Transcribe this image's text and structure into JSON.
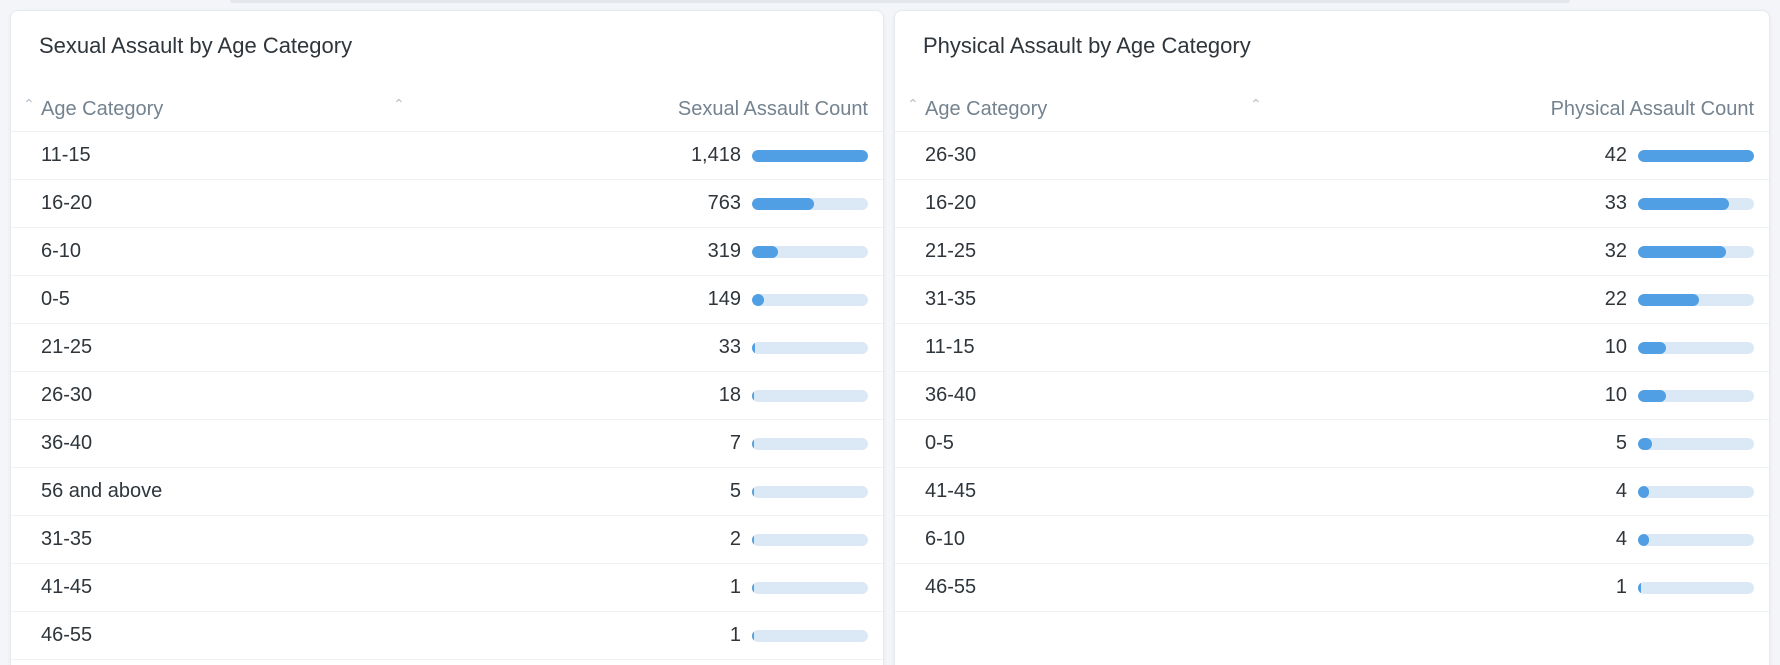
{
  "left_card": {
    "title": "Sexual Assault by Age Category",
    "col_category": "Age Category",
    "col_count": "Sexual Assault Count",
    "max": 1418,
    "rows": [
      {
        "category": "11-15",
        "value": 1418,
        "display": "1,418"
      },
      {
        "category": "16-20",
        "value": 763,
        "display": "763"
      },
      {
        "category": "6-10",
        "value": 319,
        "display": "319"
      },
      {
        "category": "0-5",
        "value": 149,
        "display": "149"
      },
      {
        "category": "21-25",
        "value": 33,
        "display": "33"
      },
      {
        "category": "26-30",
        "value": 18,
        "display": "18"
      },
      {
        "category": "36-40",
        "value": 7,
        "display": "7"
      },
      {
        "category": "56 and above",
        "value": 5,
        "display": "5"
      },
      {
        "category": "31-35",
        "value": 2,
        "display": "2"
      },
      {
        "category": "41-45",
        "value": 1,
        "display": "1"
      },
      {
        "category": "46-55",
        "value": 1,
        "display": "1"
      }
    ]
  },
  "right_card": {
    "title": "Physical Assault by Age Category",
    "col_category": "Age Category",
    "col_count": "Physical Assault Count",
    "max": 42,
    "rows": [
      {
        "category": "26-30",
        "value": 42,
        "display": "42"
      },
      {
        "category": "16-20",
        "value": 33,
        "display": "33"
      },
      {
        "category": "21-25",
        "value": 32,
        "display": "32"
      },
      {
        "category": "31-35",
        "value": 22,
        "display": "22"
      },
      {
        "category": "11-15",
        "value": 10,
        "display": "10"
      },
      {
        "category": "36-40",
        "value": 10,
        "display": "10"
      },
      {
        "category": "0-5",
        "value": 5,
        "display": "5"
      },
      {
        "category": "41-45",
        "value": 4,
        "display": "4"
      },
      {
        "category": "6-10",
        "value": 4,
        "display": "4"
      },
      {
        "category": "46-55",
        "value": 1,
        "display": "1"
      }
    ]
  },
  "colors": {
    "bar_fill": "#509ee3",
    "bar_track": "#dbe9f7"
  }
}
